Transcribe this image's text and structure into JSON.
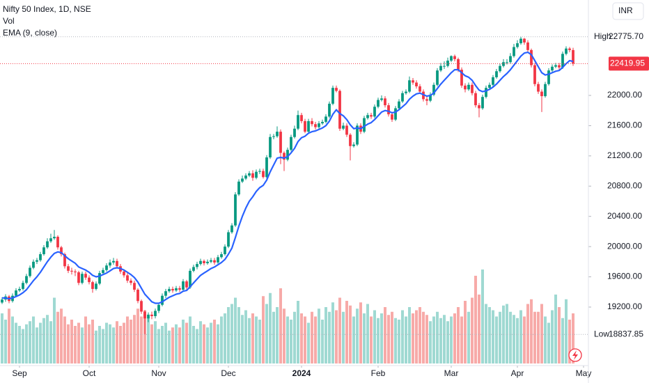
{
  "chart_data": {
    "type": "candlestick",
    "title": "Nifty 50 Index, 1D, NSE",
    "currency": "INR",
    "up_color": "#089981",
    "down_color": "#f23645",
    "ylim": [
      18426,
      23262
    ],
    "xlim": [
      -0.6,
      168.4
    ],
    "yticks": [
      {
        "value": 19200,
        "label": "19200.00"
      },
      {
        "value": 19600,
        "label": "19600.00"
      },
      {
        "value": 20000,
        "label": "20000.00"
      },
      {
        "value": 20400,
        "label": "20400.00"
      },
      {
        "value": 20800,
        "label": "20800.00"
      },
      {
        "value": 21200,
        "label": "21200.00"
      },
      {
        "value": 21600,
        "label": "21600.00"
      },
      {
        "value": 22000,
        "label": "22000.00"
      }
    ],
    "xticks": [
      {
        "value": 5,
        "label": "Sep"
      },
      {
        "value": 25,
        "label": "Oct"
      },
      {
        "value": 45,
        "label": "Nov"
      },
      {
        "value": 65,
        "label": "Dec"
      },
      {
        "value": 86,
        "label": "2024"
      },
      {
        "value": 108,
        "label": "Feb"
      },
      {
        "value": 129,
        "label": "Mar"
      },
      {
        "value": 148,
        "label": "Apr"
      },
      {
        "value": 167,
        "label": "May"
      }
    ],
    "high_marker": {
      "name": "High",
      "value": 22775.7,
      "label": "22775.70"
    },
    "low_marker": {
      "name": "Low",
      "value": 18837.85,
      "label": "18837.85"
    },
    "last_price": {
      "value": 22419.95,
      "label": "22419.95"
    },
    "ohlc": [
      [
        19260,
        19330,
        19240,
        19300
      ],
      [
        19300,
        19370,
        19270,
        19340
      ],
      [
        19340,
        19360,
        19250,
        19280
      ],
      [
        19280,
        19380,
        19260,
        19350
      ],
      [
        19350,
        19450,
        19330,
        19420
      ],
      [
        19420,
        19470,
        19400,
        19440
      ],
      [
        19440,
        19550,
        19420,
        19520
      ],
      [
        19520,
        19640,
        19500,
        19610
      ],
      [
        19610,
        19750,
        19590,
        19720
      ],
      [
        19720,
        19830,
        19700,
        19800
      ],
      [
        19800,
        19850,
        19770,
        19820
      ],
      [
        19820,
        19930,
        19800,
        19900
      ],
      [
        19900,
        20020,
        19880,
        19990
      ],
      [
        19990,
        20110,
        19970,
        20070
      ],
      [
        20070,
        20170,
        20050,
        20110
      ],
      [
        20110,
        20220,
        20090,
        20130
      ],
      [
        20130,
        20150,
        19960,
        19990
      ],
      [
        19990,
        20010,
        19870,
        19900
      ],
      [
        19900,
        19920,
        19710,
        19740
      ],
      [
        19740,
        19770,
        19650,
        19680
      ],
      [
        19680,
        19720,
        19630,
        19670
      ],
      [
        19670,
        19700,
        19610,
        19660
      ],
      [
        19660,
        19680,
        19490,
        19520
      ],
      [
        19520,
        19670,
        19500,
        19640
      ],
      [
        19640,
        19670,
        19560,
        19590
      ],
      [
        19590,
        19620,
        19500,
        19530
      ],
      [
        19530,
        19550,
        19390,
        19440
      ],
      [
        19440,
        19540,
        19420,
        19510
      ],
      [
        19510,
        19680,
        19490,
        19650
      ],
      [
        19650,
        19720,
        19620,
        19690
      ],
      [
        19690,
        19780,
        19670,
        19750
      ],
      [
        19750,
        19830,
        19720,
        19790
      ],
      [
        19790,
        19850,
        19760,
        19810
      ],
      [
        19810,
        19840,
        19710,
        19740
      ],
      [
        19740,
        19770,
        19640,
        19670
      ],
      [
        19670,
        19700,
        19590,
        19620
      ],
      [
        19620,
        19650,
        19520,
        19550
      ],
      [
        19550,
        19580,
        19490,
        19520
      ],
      [
        19520,
        19550,
        19400,
        19430
      ],
      [
        19430,
        19450,
        19250,
        19280
      ],
      [
        19280,
        19300,
        19110,
        19140
      ],
      [
        19140,
        19160,
        18837.85,
        19050
      ],
      [
        19050,
        19130,
        19000,
        19100
      ],
      [
        19100,
        19140,
        19040,
        19080
      ],
      [
        19080,
        19180,
        19050,
        19150
      ],
      [
        19150,
        19260,
        19120,
        19230
      ],
      [
        19230,
        19380,
        19210,
        19350
      ],
      [
        19350,
        19440,
        19320,
        19410
      ],
      [
        19410,
        19470,
        19390,
        19440
      ],
      [
        19440,
        19470,
        19390,
        19420
      ],
      [
        19420,
        19480,
        19400,
        19450
      ],
      [
        19450,
        19480,
        19400,
        19430
      ],
      [
        19430,
        19570,
        19410,
        19540
      ],
      [
        19540,
        19560,
        19430,
        19460
      ],
      [
        19460,
        19710,
        19440,
        19680
      ],
      [
        19680,
        19760,
        19660,
        19730
      ],
      [
        19730,
        19800,
        19700,
        19770
      ],
      [
        19770,
        19840,
        19750,
        19810
      ],
      [
        19810,
        19830,
        19750,
        19780
      ],
      [
        19780,
        19830,
        19760,
        19800
      ],
      [
        19800,
        19850,
        19780,
        19820
      ],
      [
        19820,
        19850,
        19760,
        19790
      ],
      [
        19790,
        19890,
        19770,
        19860
      ],
      [
        19860,
        19930,
        19840,
        19900
      ],
      [
        19900,
        20030,
        19880,
        20000
      ],
      [
        20000,
        20220,
        19980,
        20190
      ],
      [
        20190,
        20310,
        20170,
        20280
      ],
      [
        20280,
        20720,
        20260,
        20690
      ],
      [
        20690,
        20890,
        20670,
        20860
      ],
      [
        20860,
        20940,
        20840,
        20900
      ],
      [
        20900,
        20970,
        20880,
        20940
      ],
      [
        20940,
        21000,
        20920,
        20970
      ],
      [
        20970,
        21010,
        20870,
        20910
      ],
      [
        20910,
        21020,
        20890,
        20990
      ],
      [
        20990,
        21030,
        20960,
        21000
      ],
      [
        21000,
        21030,
        20900,
        20920
      ],
      [
        20920,
        21210,
        20900,
        21180
      ],
      [
        21180,
        21490,
        21160,
        21450
      ],
      [
        21450,
        21490,
        21420,
        21460
      ],
      [
        21460,
        21590,
        21440,
        21520
      ],
      [
        21520,
        21550,
        21090,
        21240
      ],
      [
        21240,
        21260,
        21000,
        21150
      ],
      [
        21150,
        21310,
        21130,
        21280
      ],
      [
        21280,
        21480,
        21260,
        21450
      ],
      [
        21450,
        21600,
        21430,
        21560
      ],
      [
        21560,
        21800,
        21540,
        21740
      ],
      [
        21740,
        21770,
        21630,
        21660
      ],
      [
        21660,
        21690,
        21500,
        21520
      ],
      [
        21520,
        21690,
        21500,
        21660
      ],
      [
        21660,
        21700,
        21590,
        21620
      ],
      [
        21620,
        21650,
        21550,
        21580
      ],
      [
        21580,
        21660,
        21560,
        21630
      ],
      [
        21630,
        21680,
        21610,
        21650
      ],
      [
        21650,
        21750,
        21630,
        21720
      ],
      [
        21720,
        21920,
        21700,
        21890
      ],
      [
        21890,
        22130,
        21870,
        22100
      ],
      [
        22100,
        22130,
        22040,
        22060
      ],
      [
        22060,
        22080,
        21530,
        21560
      ],
      [
        21560,
        21640,
        21540,
        21600
      ],
      [
        21600,
        21630,
        21450,
        21480
      ],
      [
        21480,
        21500,
        21140,
        21330
      ],
      [
        21330,
        21380,
        21310,
        21350
      ],
      [
        21350,
        21630,
        21330,
        21600
      ],
      [
        21600,
        21630,
        21490,
        21520
      ],
      [
        21520,
        21730,
        21500,
        21700
      ],
      [
        21700,
        21770,
        21680,
        21740
      ],
      [
        21740,
        21770,
        21690,
        21720
      ],
      [
        21720,
        21880,
        21700,
        21850
      ],
      [
        21850,
        21970,
        21830,
        21940
      ],
      [
        21940,
        22000,
        21920,
        21960
      ],
      [
        21960,
        21990,
        21840,
        21870
      ],
      [
        21870,
        21900,
        21720,
        21750
      ],
      [
        21750,
        21780,
        21650,
        21680
      ],
      [
        21680,
        21860,
        21660,
        21830
      ],
      [
        21830,
        21950,
        21810,
        21920
      ],
      [
        21920,
        22060,
        21900,
        22030
      ],
      [
        22030,
        22080,
        22010,
        22050
      ],
      [
        22050,
        22250,
        22030,
        22200
      ],
      [
        22200,
        22230,
        22140,
        22170
      ],
      [
        22170,
        22200,
        22090,
        22120
      ],
      [
        22120,
        22150,
        22020,
        22050
      ],
      [
        22050,
        22080,
        21920,
        21950
      ],
      [
        21950,
        21990,
        21870,
        21930
      ],
      [
        21930,
        22040,
        21910,
        22010
      ],
      [
        22010,
        22170,
        21990,
        22140
      ],
      [
        22140,
        22360,
        22120,
        22330
      ],
      [
        22330,
        22430,
        22310,
        22390
      ],
      [
        22390,
        22450,
        22350,
        22390
      ],
      [
        22390,
        22500,
        22370,
        22460
      ],
      [
        22460,
        22530,
        22440,
        22520
      ],
      [
        22520,
        22540,
        22450,
        22480
      ],
      [
        22480,
        22500,
        22310,
        22340
      ],
      [
        22340,
        22370,
        22100,
        22130
      ],
      [
        22130,
        22160,
        22040,
        22080
      ],
      [
        22080,
        22170,
        22060,
        22140
      ],
      [
        22140,
        22170,
        22000,
        22030
      ],
      [
        22030,
        22060,
        21840,
        21870
      ],
      [
        21870,
        21900,
        21710,
        21830
      ],
      [
        21830,
        22010,
        21810,
        21980
      ],
      [
        21980,
        22130,
        21960,
        22100
      ],
      [
        22100,
        22170,
        22080,
        22140
      ],
      [
        22140,
        22270,
        22120,
        22240
      ],
      [
        22240,
        22350,
        22220,
        22320
      ],
      [
        22320,
        22420,
        22300,
        22390
      ],
      [
        22390,
        22480,
        22370,
        22440
      ],
      [
        22440,
        22480,
        22410,
        22440
      ],
      [
        22440,
        22560,
        22420,
        22520
      ],
      [
        22520,
        22680,
        22500,
        22640
      ],
      [
        22640,
        22730,
        22620,
        22690
      ],
      [
        22690,
        22775.7,
        22670,
        22750
      ],
      [
        22750,
        22760,
        22670,
        22700
      ],
      [
        22700,
        22730,
        22570,
        22600
      ],
      [
        22600,
        22620,
        22370,
        22400
      ],
      [
        22400,
        22430,
        22120,
        22150
      ],
      [
        22150,
        22180,
        22020,
        22050
      ],
      [
        22050,
        22080,
        21780,
        21990
      ],
      [
        21990,
        22180,
        21970,
        22150
      ],
      [
        22150,
        22360,
        22130,
        22330
      ],
      [
        22330,
        22410,
        22310,
        22380
      ],
      [
        22380,
        22430,
        22360,
        22400
      ],
      [
        22400,
        22430,
        22340,
        22370
      ],
      [
        22370,
        22580,
        22350,
        22550
      ],
      [
        22550,
        22650,
        22530,
        22620
      ],
      [
        22620,
        22640,
        22570,
        22600
      ],
      [
        22600,
        22630,
        22390,
        22419.95
      ]
    ],
    "volume": {
      "name": "Vol",
      "up_color": "#9fd9d2",
      "down_color": "#f7aaa8",
      "values": [
        320,
        280,
        350,
        300,
        260,
        240,
        220,
        250,
        270,
        300,
        230,
        260,
        290,
        310,
        270,
        420,
        330,
        350,
        300,
        250,
        280,
        240,
        260,
        230,
        300,
        250,
        280,
        210,
        240,
        220,
        260,
        250,
        230,
        270,
        240,
        260,
        300,
        280,
        310,
        350,
        300,
        340,
        290,
        250,
        270,
        220,
        240,
        260,
        210,
        230,
        250,
        230,
        280,
        260,
        300,
        240,
        220,
        270,
        250,
        230,
        260,
        280,
        250,
        300,
        320,
        360,
        380,
        420,
        360,
        310,
        340,
        290,
        320,
        300,
        280,
        430,
        380,
        450,
        330,
        360,
        480,
        350,
        300,
        280,
        330,
        400,
        320,
        300,
        260,
        330,
        300,
        350,
        280,
        360,
        330,
        390,
        340,
        420,
        330,
        400,
        370,
        300,
        350,
        390,
        320,
        380,
        300,
        340,
        290,
        320,
        360,
        310,
        330,
        290,
        280,
        340,
        300,
        360,
        320,
        340,
        360,
        330,
        310,
        270,
        300,
        330,
        290,
        310,
        270,
        300,
        320,
        360,
        300,
        400,
        330,
        420,
        560,
        440,
        600,
        380,
        360,
        340,
        300,
        330,
        370,
        380,
        330,
        310,
        290,
        340,
        300,
        380,
        410,
        330,
        330,
        380,
        300,
        260,
        340,
        440,
        360,
        290,
        410,
        280,
        320
      ]
    },
    "ema": {
      "name": "EMA (9, close)",
      "color": "#2962ff",
      "values": [
        19320,
        19320,
        19310,
        19320,
        19340,
        19360,
        19390,
        19430,
        19490,
        19550,
        19600,
        19660,
        19730,
        19800,
        19860,
        19910,
        19930,
        19920,
        19880,
        19840,
        19810,
        19780,
        19730,
        19710,
        19690,
        19660,
        19620,
        19600,
        19610,
        19630,
        19650,
        19680,
        19710,
        19720,
        19710,
        19690,
        19660,
        19630,
        19590,
        19530,
        19450,
        19370,
        19320,
        19270,
        19250,
        19250,
        19270,
        19300,
        19330,
        19350,
        19370,
        19380,
        19410,
        19420,
        19470,
        19520,
        19570,
        19620,
        19650,
        19680,
        19710,
        19730,
        19760,
        19790,
        19830,
        19900,
        19980,
        20120,
        20270,
        20400,
        20510,
        20600,
        20660,
        20730,
        20780,
        20810,
        20880,
        20990,
        21080,
        21170,
        21180,
        21170,
        21190,
        21240,
        21300,
        21390,
        21440,
        21460,
        21500,
        21520,
        21530,
        21550,
        21570,
        21600,
        21660,
        21750,
        21810,
        21760,
        21730,
        21680,
        21610,
        21560,
        21570,
        21560,
        21590,
        21620,
        21640,
        21680,
        21730,
        21780,
        21800,
        21790,
        21770,
        21780,
        21810,
        21850,
        21890,
        21950,
        21990,
        22020,
        22030,
        22010,
        21990,
        22000,
        22030,
        22090,
        22150,
        22200,
        22250,
        22300,
        22340,
        22340,
        22300,
        22260,
        22240,
        22200,
        22130,
        22070,
        22050,
        22060,
        22080,
        22110,
        22150,
        22200,
        22250,
        22290,
        22340,
        22400,
        22460,
        22520,
        22560,
        22570,
        22540,
        22460,
        22380,
        22300,
        22270,
        22280,
        22300,
        22320,
        22330,
        22370,
        22420,
        22460,
        22450
      ]
    }
  }
}
